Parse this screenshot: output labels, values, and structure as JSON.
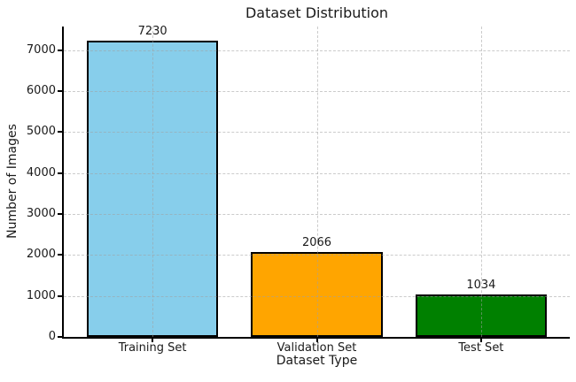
{
  "chart_data": {
    "type": "bar",
    "title": "Dataset Distribution",
    "xlabel": "Dataset Type",
    "ylabel": "Number of Images",
    "categories": [
      "Training Set",
      "Validation Set",
      "Test Set"
    ],
    "values": [
      7230,
      2066,
      1034
    ],
    "bar_labels": [
      "7230",
      "2066",
      "1034"
    ],
    "bar_colors": [
      "#87CEEB",
      "#FFA500",
      "#008000"
    ],
    "bar_edge_color": "#000000",
    "ylim": [
      0,
      7580
    ],
    "yticks": [
      0,
      1000,
      2000,
      3000,
      4000,
      5000,
      6000,
      7000
    ],
    "grid": {
      "visible": true,
      "line_style": "dashed",
      "color": "#c8c8c8",
      "horizontal": true,
      "vertical": true,
      "drawn_over_bars": true
    },
    "legend": null,
    "background_color": "#ffffff"
  }
}
